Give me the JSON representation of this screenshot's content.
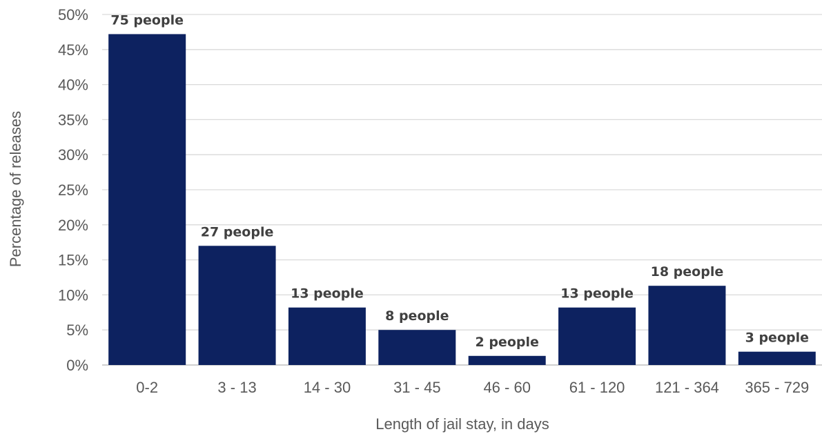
{
  "chart_data": {
    "type": "bar",
    "title": "",
    "xlabel": "Length of jail stay, in days",
    "ylabel": "Percentage of releases",
    "ylim": [
      0,
      50
    ],
    "y_tick_values": [
      0,
      5,
      10,
      15,
      20,
      25,
      30,
      35,
      40,
      45,
      50
    ],
    "y_tick_labels": [
      "0%",
      "5%",
      "10%",
      "15%",
      "20%",
      "25%",
      "30%",
      "35%",
      "40%",
      "45%",
      "50%"
    ],
    "categories": [
      "0-2",
      "3 - 13",
      "14 - 30",
      "31 - 45",
      "46 - 60",
      "61 - 120",
      "121 - 364",
      "365 - 729"
    ],
    "values": [
      47.2,
      17.0,
      8.2,
      5.0,
      1.3,
      8.2,
      11.3,
      1.9
    ],
    "data_labels": [
      "75 people",
      "27 people",
      "13 people",
      "8 people",
      "2 people",
      "13 people",
      "18 people",
      "3 people"
    ],
    "grid": true,
    "legend": "none",
    "bar_color": "#0d2260",
    "grid_color": "#d9d9d9"
  }
}
